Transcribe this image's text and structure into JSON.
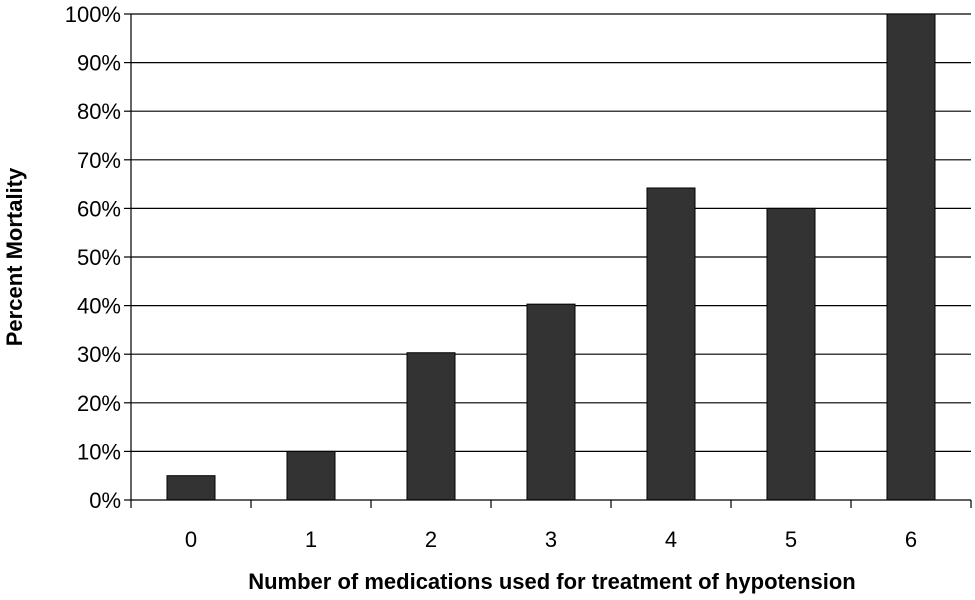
{
  "chart_data": {
    "type": "bar",
    "categories": [
      "0",
      "1",
      "2",
      "3",
      "4",
      "5",
      "6"
    ],
    "values": [
      5,
      10,
      30.3,
      40.3,
      64.2,
      60,
      100
    ],
    "title": "",
    "xlabel": "Number of medications used for treatment of hypotension",
    "ylabel": "Percent Mortality",
    "ylim": [
      0,
      100
    ],
    "yticks": [
      0,
      10,
      20,
      30,
      40,
      50,
      60,
      70,
      80,
      90,
      100
    ],
    "ytick_labels": [
      "0%",
      "10%",
      "20%",
      "30%",
      "40%",
      "50%",
      "60%",
      "70%",
      "80%",
      "90%",
      "100%"
    ],
    "grid": true,
    "legend": "none",
    "bar_color": "#333333"
  }
}
